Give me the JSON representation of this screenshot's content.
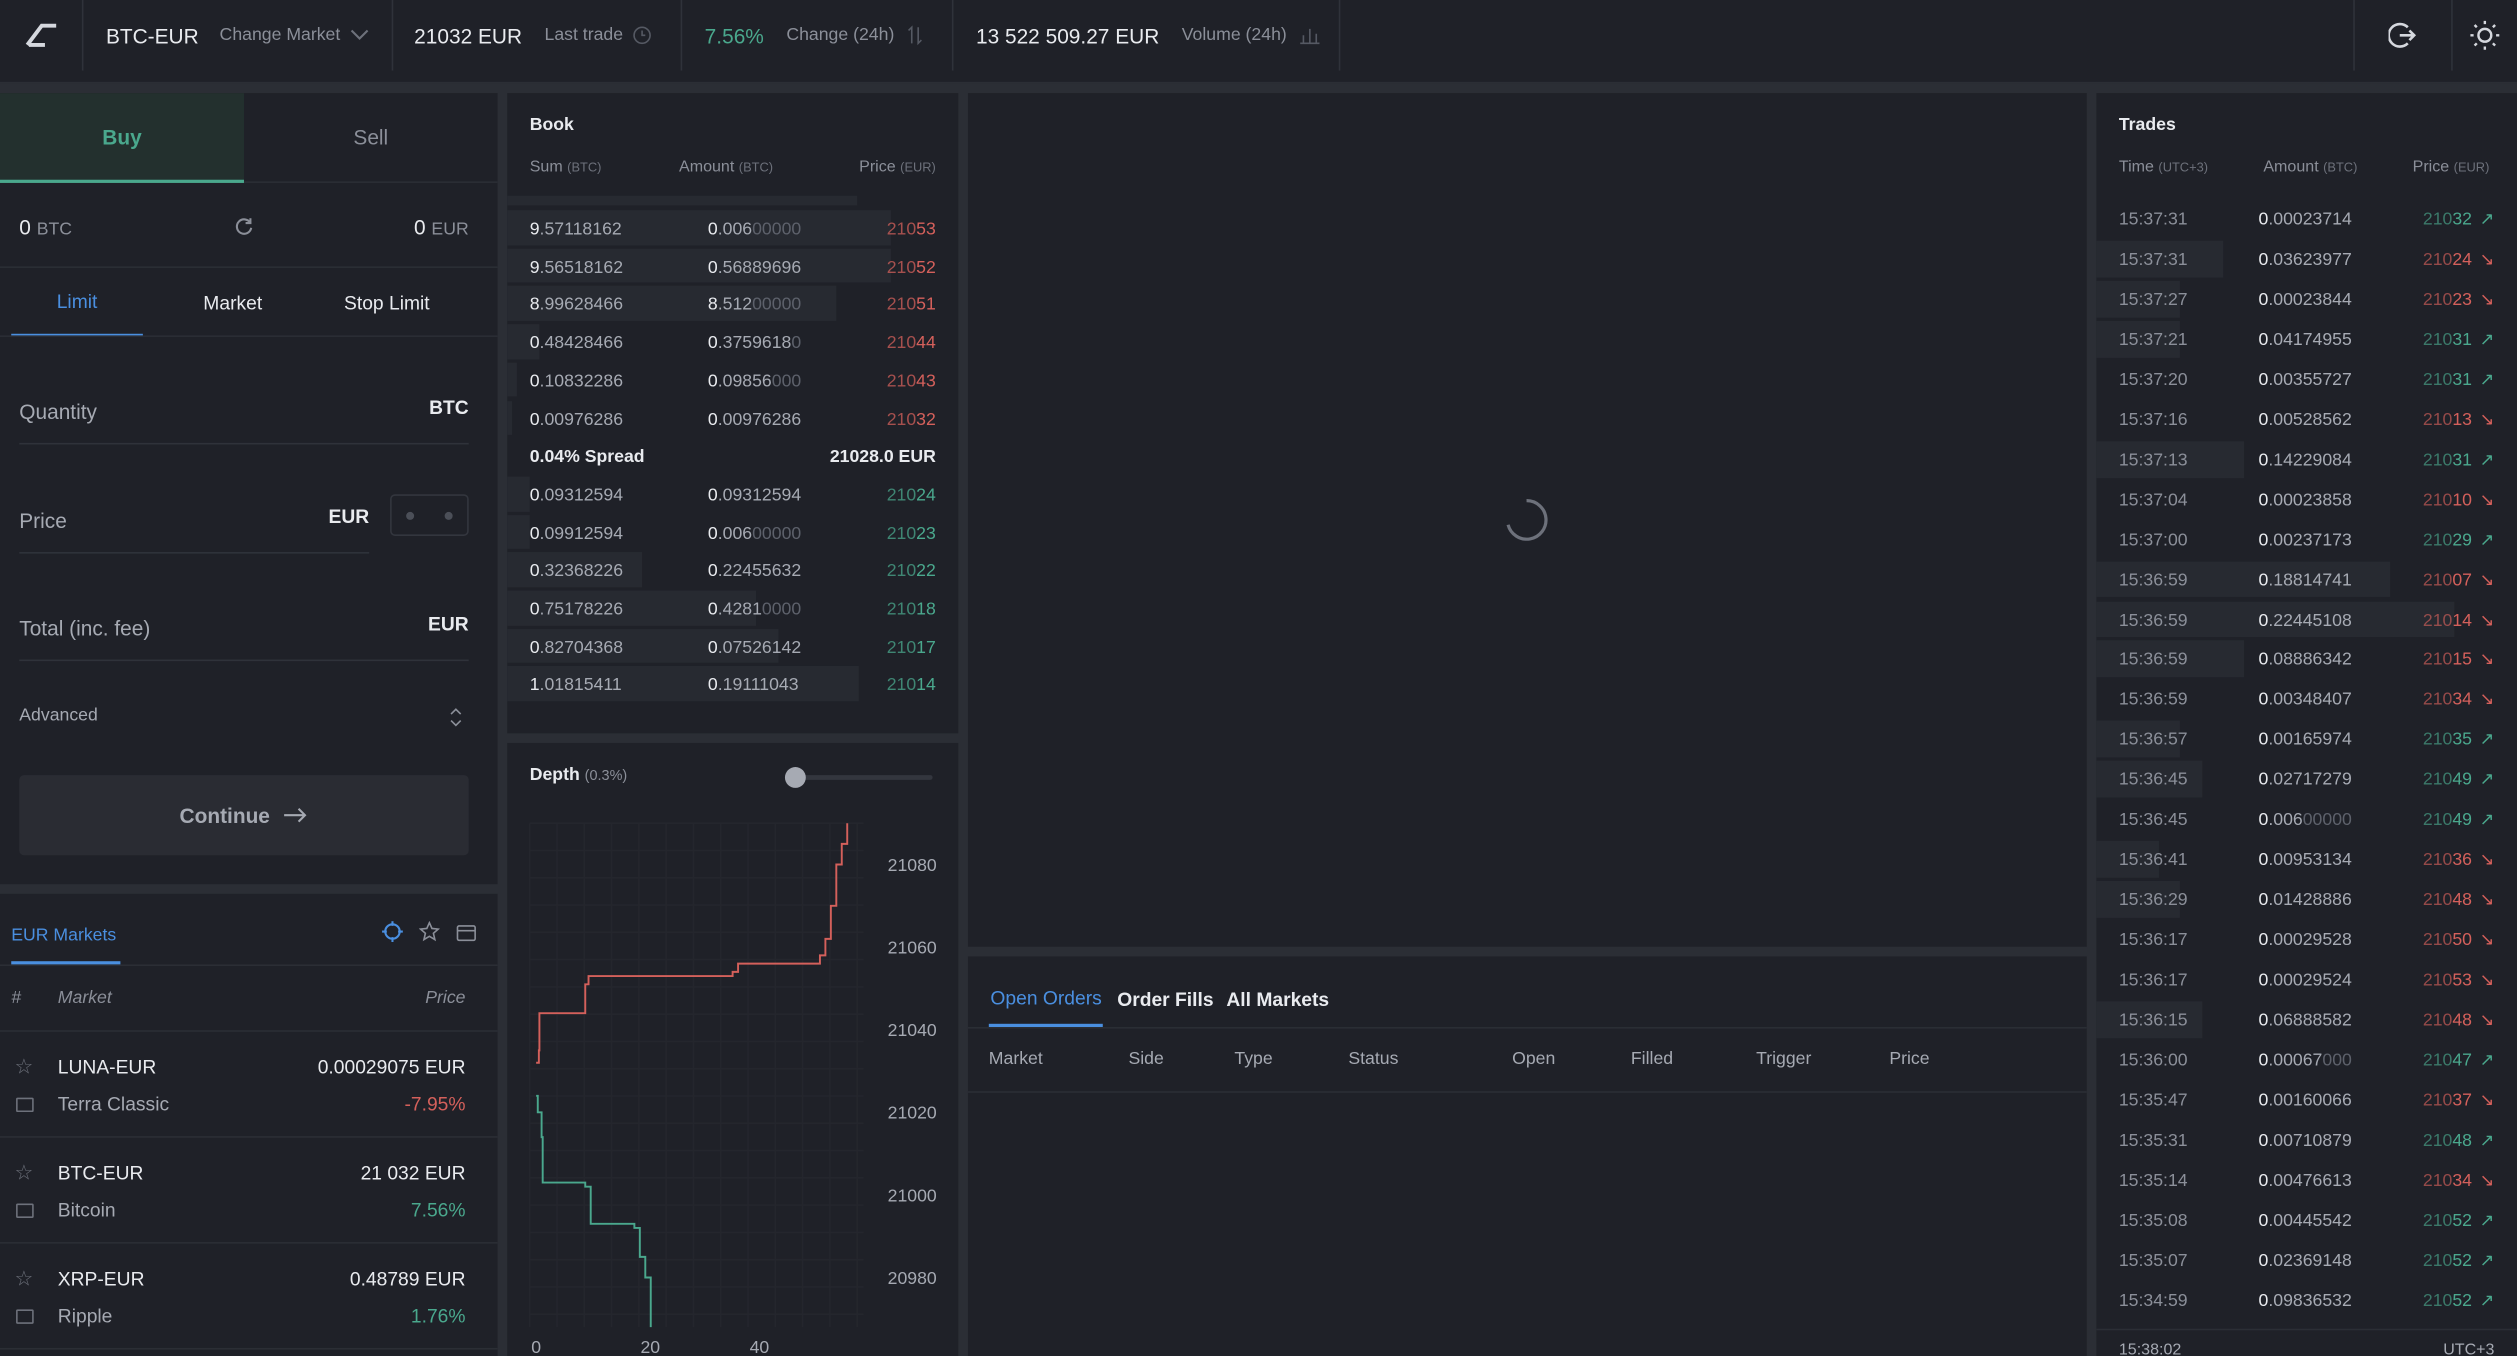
{
  "header": {
    "pair": "BTC-EUR",
    "change_market": "Change Market",
    "last_trade_value": "21032 EUR",
    "last_trade_label": "Last trade",
    "change_value": "7.56%",
    "change_label": "Change (24h)",
    "volume_value": "13 522 509.27 EUR",
    "volume_label": "Volume (24h)"
  },
  "order_form": {
    "tabs": [
      "Buy",
      "Sell"
    ],
    "balance_btc": "0",
    "balance_btc_unit": "BTC",
    "balance_eur": "0",
    "balance_eur_unit": "EUR",
    "order_types": [
      "Limit",
      "Market",
      "Stop Limit"
    ],
    "quantity_label": "Quantity",
    "quantity_unit": "BTC",
    "price_label": "Price",
    "price_unit": "EUR",
    "total_label": "Total (inc. fee)",
    "total_unit": "EUR",
    "advanced_label": "Advanced",
    "continue_label": "Continue"
  },
  "markets": {
    "tab": "EUR Markets",
    "col_hash": "#",
    "col_market": "Market",
    "col_price": "Price",
    "items": [
      {
        "pair": "LUNA-EUR",
        "name": "Terra Classic",
        "price": "0.00029075 EUR",
        "change": "-7.95%",
        "dir": "down"
      },
      {
        "pair": "BTC-EUR",
        "name": "Bitcoin",
        "price": "21 032 EUR",
        "change": "7.56%",
        "dir": "up"
      },
      {
        "pair": "XRP-EUR",
        "name": "Ripple",
        "price": "0.48789 EUR",
        "change": "1.76%",
        "dir": "up"
      }
    ]
  },
  "book": {
    "title": "Book",
    "col_sum": "Sum",
    "col_sum_unit": "(BTC)",
    "col_amount": "Amount",
    "col_amount_unit": "(BTC)",
    "col_price": "Price",
    "col_price_unit": "(EUR)",
    "asks": [
      {
        "sum": "9.57118162",
        "amount": "0.00600000",
        "price": "21053",
        "depth": 0.85
      },
      {
        "sum": "9.56518162",
        "amount": "0.56889696",
        "price": "21052",
        "depth": 0.85
      },
      {
        "sum": "8.99628466",
        "amount": "8.51200000",
        "price": "21051",
        "depth": 0.73
      },
      {
        "sum": "0.48428466",
        "amount": "0.37596180",
        "price": "21044",
        "depth": 0.07
      },
      {
        "sum": "0.10832286",
        "amount": "0.09856000",
        "price": "21043",
        "depth": 0.02
      },
      {
        "sum": "0.00976286",
        "amount": "0.00976286",
        "price": "21032",
        "depth": 0.01
      }
    ],
    "spread_label": "0.04% Spread",
    "spread_price": "21028.0 EUR",
    "bids": [
      {
        "sum": "0.09312594",
        "amount": "0.09312594",
        "price": "21024",
        "depth": 0.05
      },
      {
        "sum": "0.09912594",
        "amount": "0.00600000",
        "price": "21023",
        "depth": 0.05
      },
      {
        "sum": "0.32368226",
        "amount": "0.22455632",
        "price": "21022",
        "depth": 0.3
      },
      {
        "sum": "0.75178226",
        "amount": "0.42810000",
        "price": "21018",
        "depth": 0.55
      },
      {
        "sum": "0.82704368",
        "amount": "0.07526142",
        "price": "21017",
        "depth": 0.6
      },
      {
        "sum": "1.01815411",
        "amount": "0.19111043",
        "price": "21014",
        "depth": 0.78
      }
    ]
  },
  "depth": {
    "title": "Depth",
    "range": "(0.3%)",
    "slider_value": 0,
    "y_ticks": [
      "21080",
      "21060",
      "21040",
      "21020",
      "21000",
      "20980"
    ],
    "x_ticks": [
      "0",
      "20",
      "40"
    ]
  },
  "orders": {
    "tabs": [
      "Open Orders",
      "Order Fills",
      "All Markets"
    ],
    "columns": [
      "Market",
      "Side",
      "Type",
      "Status",
      "Open",
      "Filled",
      "Trigger",
      "Price"
    ]
  },
  "trades": {
    "title": "Trades",
    "col_time": "Time",
    "col_time_unit": "(UTC+3)",
    "col_amount": "Amount",
    "col_amount_unit": "(BTC)",
    "col_price": "Price",
    "col_price_unit": "(EUR)",
    "rows": [
      {
        "time": "15:37:31",
        "amount": "0.00023714",
        "price": "21032",
        "side": "buy"
      },
      {
        "time": "15:37:31",
        "amount": "0.03623977",
        "price": "21024",
        "side": "sell"
      },
      {
        "time": "15:37:27",
        "amount": "0.00023844",
        "price": "21023",
        "side": "sell"
      },
      {
        "time": "15:37:21",
        "amount": "0.04174955",
        "price": "21031",
        "side": "buy"
      },
      {
        "time": "15:37:20",
        "amount": "0.00355727",
        "price": "21031",
        "side": "buy"
      },
      {
        "time": "15:37:16",
        "amount": "0.00528562",
        "price": "21013",
        "side": "sell"
      },
      {
        "time": "15:37:13",
        "amount": "0.14229084",
        "price": "21031",
        "side": "buy"
      },
      {
        "time": "15:37:04",
        "amount": "0.00023858",
        "price": "21010",
        "side": "sell"
      },
      {
        "time": "15:37:00",
        "amount": "0.00237173",
        "price": "21029",
        "side": "buy"
      },
      {
        "time": "15:36:59",
        "amount": "0.18814741",
        "price": "21007",
        "side": "sell"
      },
      {
        "time": "15:36:59",
        "amount": "0.22445108",
        "price": "21014",
        "side": "sell"
      },
      {
        "time": "15:36:59",
        "amount": "0.08886342",
        "price": "21015",
        "side": "sell"
      },
      {
        "time": "15:36:59",
        "amount": "0.00348407",
        "price": "21034",
        "side": "sell"
      },
      {
        "time": "15:36:57",
        "amount": "0.00165974",
        "price": "21035",
        "side": "buy"
      },
      {
        "time": "15:36:45",
        "amount": "0.02717279",
        "price": "21049",
        "side": "buy"
      },
      {
        "time": "15:36:45",
        "amount": "0.00600000",
        "price": "21049",
        "side": "buy"
      },
      {
        "time": "15:36:41",
        "amount": "0.00953134",
        "price": "21036",
        "side": "sell"
      },
      {
        "time": "15:36:29",
        "amount": "0.01428886",
        "price": "21048",
        "side": "sell"
      },
      {
        "time": "15:36:17",
        "amount": "0.00029528",
        "price": "21050",
        "side": "sell"
      },
      {
        "time": "15:36:17",
        "amount": "0.00029524",
        "price": "21053",
        "side": "sell"
      },
      {
        "time": "15:36:15",
        "amount": "0.06888582",
        "price": "21048",
        "side": "sell"
      },
      {
        "time": "15:36:00",
        "amount": "0.00067000",
        "price": "21047",
        "side": "buy"
      },
      {
        "time": "15:35:47",
        "amount": "0.00160066",
        "price": "21037",
        "side": "sell"
      },
      {
        "time": "15:35:31",
        "amount": "0.00710879",
        "price": "21048",
        "side": "buy"
      },
      {
        "time": "15:35:14",
        "amount": "0.00476613",
        "price": "21034",
        "side": "sell"
      },
      {
        "time": "15:35:08",
        "amount": "0.00445542",
        "price": "21052",
        "side": "buy"
      },
      {
        "time": "15:35:07",
        "amount": "0.02369148",
        "price": "21052",
        "side": "buy"
      },
      {
        "time": "15:34:59",
        "amount": "0.09836532",
        "price": "21052",
        "side": "buy"
      }
    ],
    "footer_time": "15:38:02",
    "footer_tz": "UTC+3"
  },
  "colors": {
    "green": "#4aa88d",
    "red": "#d4605b",
    "blue": "#4a8fe0",
    "bg": "#1f2128"
  }
}
